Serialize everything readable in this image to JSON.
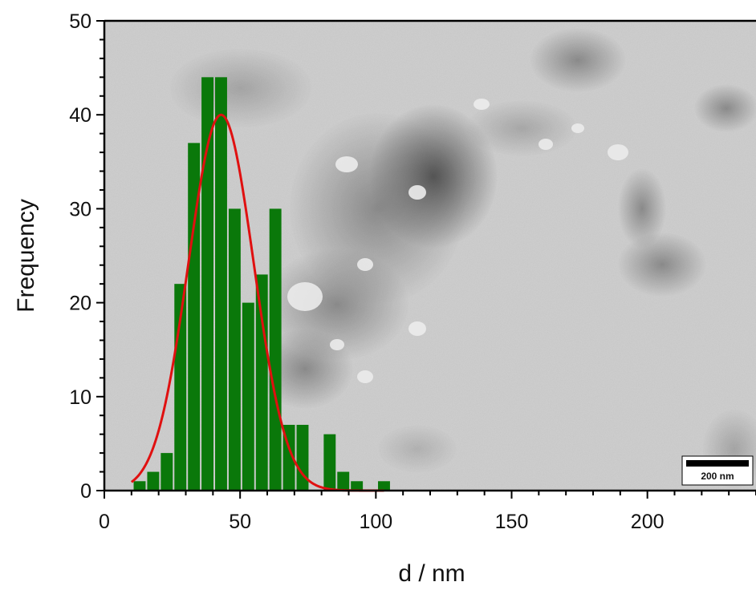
{
  "chart_data": {
    "type": "bar",
    "xlabel": "d / nm",
    "ylabel": "Frequency",
    "xlim": [
      0,
      240
    ],
    "ylim": [
      0,
      50
    ],
    "xticks": [
      0,
      50,
      100,
      150,
      200
    ],
    "yticks": [
      0,
      10,
      20,
      30,
      40,
      50
    ],
    "bin_width": 5,
    "bins": [
      {
        "center": 13,
        "count": 1
      },
      {
        "center": 18,
        "count": 2
      },
      {
        "center": 23,
        "count": 4
      },
      {
        "center": 28,
        "count": 22
      },
      {
        "center": 33,
        "count": 37
      },
      {
        "center": 38,
        "count": 44
      },
      {
        "center": 43,
        "count": 44
      },
      {
        "center": 48,
        "count": 30
      },
      {
        "center": 53,
        "count": 20
      },
      {
        "center": 58,
        "count": 23
      },
      {
        "center": 63,
        "count": 30
      },
      {
        "center": 68,
        "count": 7
      },
      {
        "center": 73,
        "count": 7
      },
      {
        "center": 78,
        "count": 0
      },
      {
        "center": 83,
        "count": 6
      },
      {
        "center": 88,
        "count": 2
      },
      {
        "center": 93,
        "count": 1
      },
      {
        "center": 98,
        "count": 0
      },
      {
        "center": 103,
        "count": 1
      }
    ],
    "fit": {
      "type": "gaussian",
      "mean": 43,
      "sigma": 12,
      "amplitude": 40,
      "x_range": [
        10,
        103
      ],
      "color": "#e01010"
    },
    "bar_color": "#0a780a",
    "grid": false,
    "background": "TEM micrograph",
    "scale_bar": {
      "label": "200 nm"
    }
  }
}
